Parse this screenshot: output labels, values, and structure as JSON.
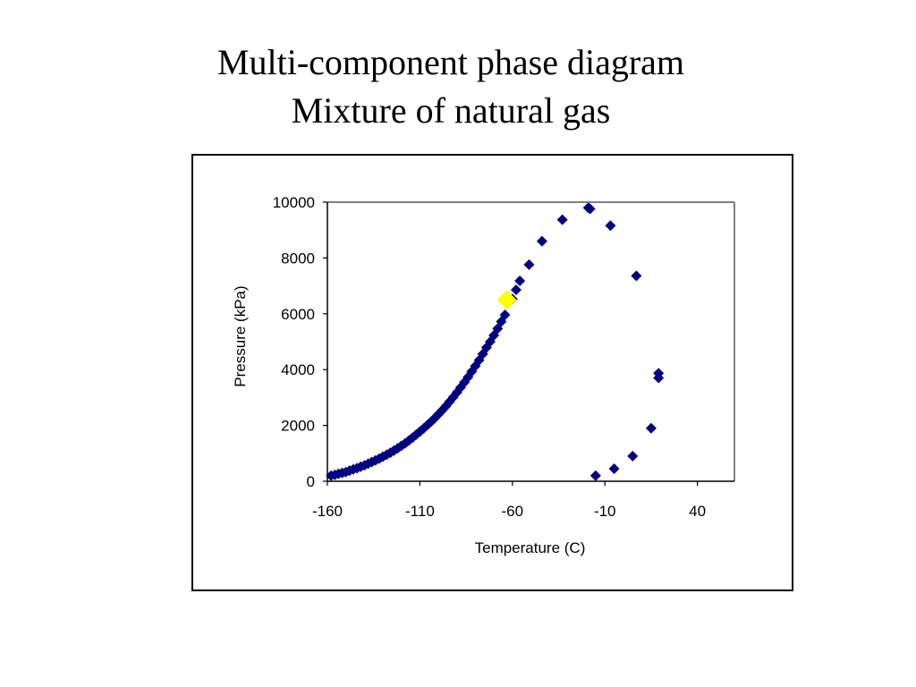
{
  "title": {
    "line1": "Multi-component phase diagram",
    "line2": "Mixture of natural gas"
  },
  "chart_data": {
    "type": "scatter",
    "xlabel": "Temperature (C)",
    "ylabel": "Pressure (kPa)",
    "xlim": [
      -160,
      60
    ],
    "ylim": [
      0,
      10000
    ],
    "x_ticks": [
      -160,
      -110,
      -60,
      -10,
      40
    ],
    "y_ticks": [
      0,
      2000,
      4000,
      6000,
      8000,
      10000
    ],
    "grid": false,
    "legend": "none",
    "series": [
      {
        "marker": "diamond",
        "color": "#000080",
        "points": [
          [
            -158,
            200
          ],
          [
            -156,
            230
          ],
          [
            -154,
            270
          ],
          [
            -152,
            300
          ],
          [
            -150,
            330
          ],
          [
            -148,
            380
          ],
          [
            -146,
            430
          ],
          [
            -144,
            470
          ],
          [
            -142,
            520
          ],
          [
            -140,
            570
          ],
          [
            -138,
            630
          ],
          [
            -136,
            690
          ],
          [
            -134,
            750
          ],
          [
            -132,
            810
          ],
          [
            -130,
            880
          ],
          [
            -128,
            950
          ],
          [
            -126,
            1020
          ],
          [
            -124,
            1100
          ],
          [
            -122,
            1180
          ],
          [
            -120,
            1270
          ],
          [
            -118,
            1360
          ],
          [
            -116,
            1460
          ],
          [
            -114,
            1560
          ],
          [
            -112,
            1670
          ],
          [
            -110,
            1780
          ],
          [
            -108,
            1890
          ],
          [
            -106,
            2010
          ],
          [
            -104,
            2130
          ],
          [
            -102,
            2260
          ],
          [
            -100,
            2400
          ],
          [
            -98,
            2540
          ],
          [
            -96,
            2690
          ],
          [
            -94,
            2850
          ],
          [
            -92,
            3010
          ],
          [
            -90,
            3180
          ],
          [
            -88,
            3360
          ],
          [
            -86,
            3540
          ],
          [
            -84,
            3730
          ],
          [
            -82,
            3930
          ],
          [
            -80,
            4130
          ],
          [
            -78,
            4340
          ],
          [
            -76,
            4560
          ],
          [
            -74,
            4790
          ],
          [
            -72,
            5000
          ],
          [
            -70,
            5230
          ],
          [
            -68,
            5470
          ],
          [
            -66,
            5720
          ],
          [
            -64,
            5960
          ],
          [
            -60,
            6530
          ],
          [
            -58,
            6860
          ],
          [
            -56,
            7180
          ],
          [
            -51,
            7760
          ],
          [
            -44,
            8600
          ],
          [
            -33,
            9370
          ],
          [
            -19,
            9800
          ],
          [
            -18,
            9760
          ],
          [
            -7,
            9160
          ],
          [
            7,
            7360
          ],
          [
            -15,
            200
          ],
          [
            -5,
            450
          ],
          [
            5,
            900
          ],
          [
            15,
            1900
          ],
          [
            19,
            3700
          ],
          [
            19,
            3870
          ]
        ]
      },
      {
        "marker": "diamond",
        "color": "#ffff00",
        "points": [
          [
            -63,
            6500
          ]
        ]
      }
    ]
  }
}
